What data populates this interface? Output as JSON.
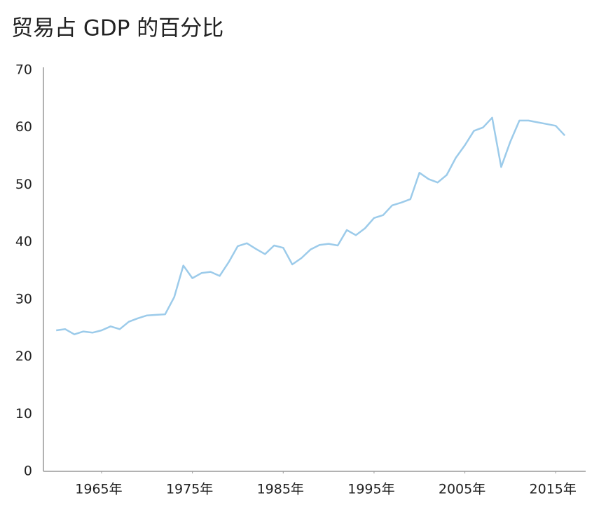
{
  "chart_data": {
    "type": "line",
    "title": "贸易占 GDP 的百分比",
    "x": [
      1960,
      1961,
      1962,
      1963,
      1964,
      1965,
      1966,
      1967,
      1968,
      1969,
      1970,
      1971,
      1972,
      1973,
      1974,
      1975,
      1976,
      1977,
      1978,
      1979,
      1980,
      1981,
      1982,
      1983,
      1984,
      1985,
      1986,
      1987,
      1988,
      1989,
      1990,
      1991,
      1992,
      1993,
      1994,
      1995,
      1996,
      1997,
      1998,
      1999,
      2000,
      2001,
      2002,
      2003,
      2004,
      2005,
      2006,
      2007,
      2008,
      2009,
      2010,
      2011,
      2012,
      2013,
      2014,
      2015,
      2016
    ],
    "values": [
      24.6,
      24.8,
      23.9,
      24.4,
      24.2,
      24.6,
      25.3,
      24.8,
      26.1,
      26.7,
      27.2,
      27.3,
      27.4,
      30.4,
      35.9,
      33.7,
      34.6,
      34.8,
      34.1,
      36.5,
      39.3,
      39.8,
      38.8,
      37.9,
      39.4,
      39.0,
      36.1,
      37.2,
      38.7,
      39.5,
      39.7,
      39.4,
      42.1,
      41.2,
      42.4,
      44.2,
      44.7,
      46.4,
      46.9,
      47.5,
      52.1,
      51.0,
      50.4,
      51.7,
      54.7,
      56.9,
      59.4,
      60.0,
      61.7,
      53.1,
      57.5,
      61.2,
      61.2,
      60.9,
      60.6,
      60.3,
      58.6
    ],
    "color": "#9ccbea",
    "xlim": [
      1958.6,
      2018.3
    ],
    "xticks": [
      {
        "value": 1965,
        "label": "1965年"
      },
      {
        "value": 1975,
        "label": "1975年"
      },
      {
        "value": 1985,
        "label": "1985年"
      },
      {
        "value": 1995,
        "label": "1995年"
      },
      {
        "value": 2005,
        "label": "2005年"
      },
      {
        "value": 2015,
        "label": "2015年"
      }
    ],
    "ylim": [
      0,
      70
    ],
    "yticks": [
      0,
      10,
      20,
      30,
      40,
      50,
      60,
      70
    ],
    "grid": false
  }
}
